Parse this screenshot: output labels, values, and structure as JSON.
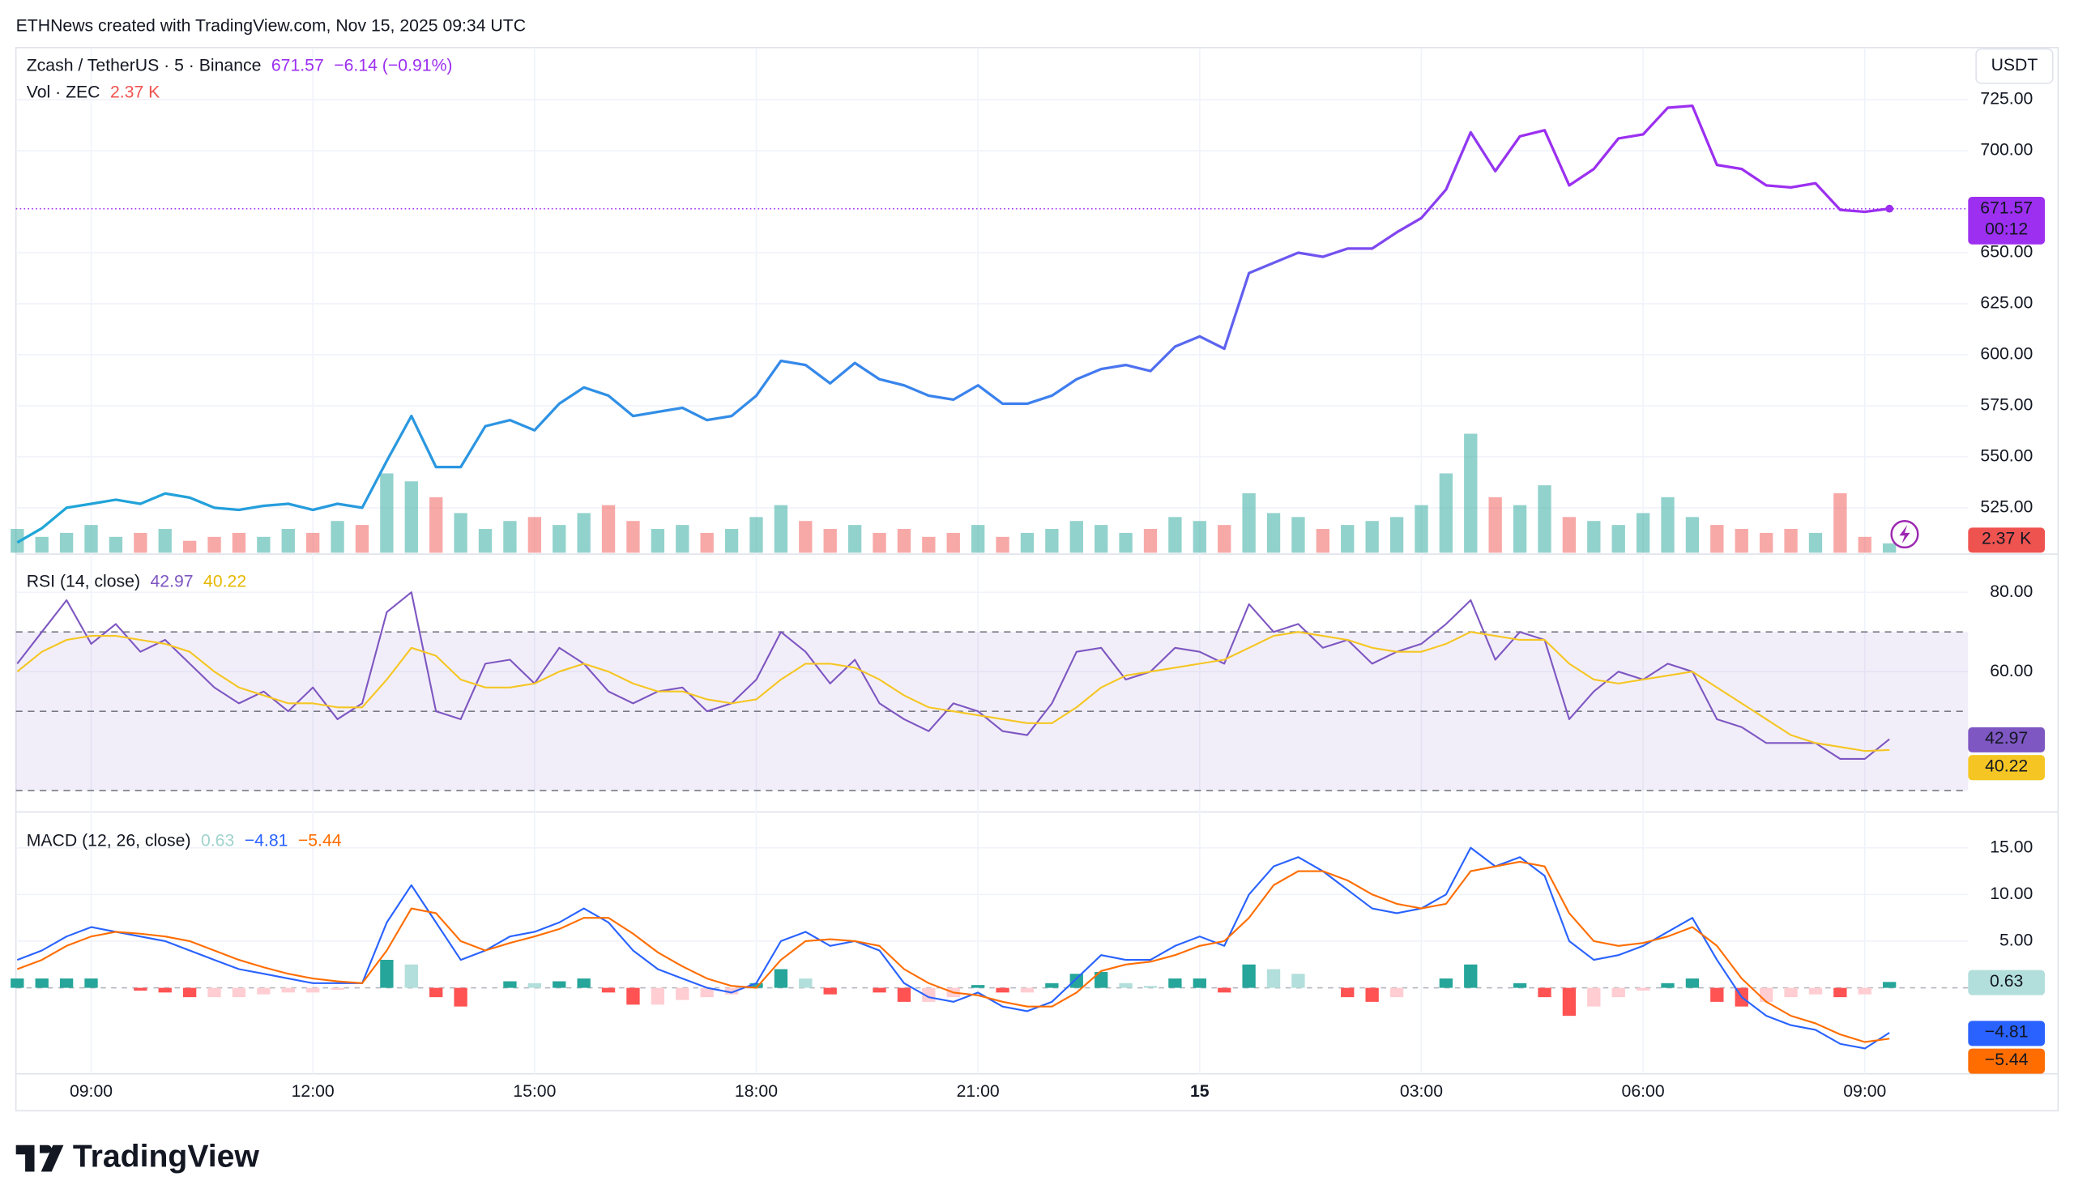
{
  "header": "ETHNews created with TradingView.com, Nov 15, 2025 09:34 UTC",
  "logo": "TradingView",
  "chart_data": [
    {
      "type": "line",
      "title": "Zcash / TetherUS · 5 · Binance",
      "change": "−6.14 (−0.91%)",
      "unit": "USDT",
      "last_time": "00:12",
      "categories": [
        null,
        null,
        null,
        "09:00",
        null,
        null,
        null,
        null,
        null,
        null,
        null,
        null,
        "12:00",
        null,
        null,
        null,
        null,
        null,
        null,
        null,
        null,
        "15:00",
        null,
        null,
        null,
        null,
        null,
        null,
        null,
        null,
        "18:00",
        null,
        null,
        null,
        null,
        null,
        null,
        null,
        null,
        "21:00",
        null,
        null,
        null,
        null,
        null,
        null,
        null,
        null,
        "15",
        null,
        null,
        null,
        null,
        null,
        null,
        null,
        null,
        "03:00",
        null,
        null,
        null,
        null,
        null,
        null,
        null,
        null,
        "06:00",
        null,
        null,
        null,
        null,
        null,
        null,
        null,
        null,
        "09:00",
        null
      ],
      "series": [
        {
          "colors": [
            "#1ea7d6",
            "#3d7ff0",
            "#9c2ff0"
          ],
          "values": [
            508,
            515,
            525,
            527,
            529,
            527,
            532,
            530,
            525,
            524,
            526,
            527,
            524,
            527,
            525,
            548,
            570,
            545,
            545,
            565,
            568,
            563,
            576,
            584,
            580,
            570,
            572,
            574,
            568,
            570,
            580,
            597,
            595,
            586,
            596,
            588,
            585,
            580,
            578,
            585,
            576,
            576,
            580,
            588,
            593,
            595,
            592,
            604,
            609,
            603,
            640,
            645,
            650,
            648,
            652,
            652,
            660,
            667,
            681,
            709,
            690,
            707,
            710,
            683,
            691,
            706,
            708,
            721,
            722,
            693,
            691,
            683,
            682,
            684,
            671,
            670,
            671.57
          ]
        }
      ],
      "volume": {
        "label": "Vol · ZEC",
        "last_label": "2.37 K",
        "up_color": "#26a69a",
        "down_color": "#ef5350",
        "values": [
          6,
          4,
          5,
          7,
          4,
          5,
          6,
          3,
          4,
          5,
          4,
          6,
          5,
          8,
          7,
          20,
          18,
          14,
          10,
          6,
          8,
          9,
          7,
          10,
          12,
          8,
          6,
          7,
          5,
          6,
          9,
          12,
          8,
          6,
          7,
          5,
          6,
          4,
          5,
          7,
          4,
          5,
          6,
          8,
          7,
          5,
          6,
          9,
          8,
          7,
          15,
          10,
          9,
          6,
          7,
          8,
          9,
          12,
          20,
          30,
          14,
          12,
          17,
          9,
          8,
          7,
          10,
          14,
          9,
          7,
          6,
          5,
          6,
          5,
          15,
          4,
          2.37
        ]
      },
      "ylim": [
        503,
        750.5
      ],
      "yticks": [
        {
          "value": 525,
          "label": "525.00"
        },
        {
          "value": 550,
          "label": "550.00"
        },
        {
          "value": 575,
          "label": "575.00"
        },
        {
          "value": 600,
          "label": "600.00"
        },
        {
          "value": 625,
          "label": "625.00"
        },
        {
          "value": 650,
          "label": "650.00"
        },
        {
          "value": 700,
          "label": "700.00"
        },
        {
          "value": 725,
          "label": "725.00"
        }
      ],
      "grid": true
    },
    {
      "type": "line",
      "title": "RSI (14, close)",
      "series": [
        {
          "color": "#7e57c2",
          "values": [
            62,
            70,
            78,
            67,
            72,
            65,
            68,
            62,
            56,
            52,
            55,
            50,
            56,
            48,
            52,
            75,
            80,
            50,
            48,
            62,
            63,
            57,
            66,
            62,
            55,
            52,
            55,
            56,
            50,
            52,
            58,
            70,
            65,
            57,
            63,
            52,
            48,
            45,
            52,
            50,
            45,
            44,
            52,
            65,
            66,
            58,
            60,
            66,
            65,
            62,
            77,
            70,
            72,
            66,
            68,
            62,
            65,
            67,
            72,
            78,
            63,
            70,
            68,
            48,
            55,
            60,
            58,
            62,
            60,
            48,
            46,
            42,
            42,
            42,
            38,
            38,
            42.97
          ]
        },
        {
          "color": "#f5c623",
          "values": [
            60,
            65,
            68,
            69,
            69,
            68,
            67,
            65,
            60,
            56,
            54,
            52,
            52,
            51,
            51,
            58,
            66,
            64,
            58,
            56,
            56,
            57,
            60,
            62,
            60,
            57,
            55,
            55,
            53,
            52,
            53,
            58,
            62,
            62,
            61,
            58,
            54,
            51,
            50,
            49,
            48,
            47,
            47,
            51,
            56,
            59,
            60,
            61,
            62,
            63,
            66,
            69,
            70,
            69,
            68,
            66,
            65,
            65,
            67,
            70,
            69,
            68,
            68,
            62,
            58,
            57,
            58,
            59,
            60,
            56,
            52,
            48,
            44,
            42,
            41,
            40,
            40.22
          ]
        }
      ],
      "levels": [
        70,
        50,
        30
      ],
      "ylim": [
        25.3,
        89.3
      ],
      "yticks": [
        {
          "value": 60,
          "label": "60.00"
        },
        {
          "value": 80,
          "label": "80.00"
        }
      ],
      "grid": true
    },
    {
      "type": "macd",
      "title": "MACD (12, 26, close)",
      "histogram": {
        "colors": [
          "#26a69a",
          "#b2dfdb",
          "#ff5252",
          "#ffcdd2"
        ],
        "values": [
          1,
          1,
          1,
          1,
          0,
          -0.3,
          -0.5,
          -1,
          -1,
          -1,
          -0.7,
          -0.5,
          -0.5,
          -0.2,
          0,
          3,
          2.5,
          -1,
          -2,
          0,
          0.7,
          0.5,
          0.7,
          1,
          -0.5,
          -1.8,
          -1.8,
          -1.3,
          -1,
          -0.7,
          0.5,
          2,
          1,
          -0.7,
          0,
          -0.5,
          -1.5,
          -1.5,
          -1,
          0.3,
          -0.5,
          -0.5,
          0.5,
          1.5,
          1.7,
          0.5,
          0.2,
          1,
          1,
          -0.5,
          2.5,
          2,
          1.5,
          0,
          -1,
          -1.5,
          -1,
          0,
          1,
          2.5,
          0,
          0.5,
          -1,
          -3,
          -2,
          -1,
          -0.3,
          0.5,
          1,
          -1.5,
          -2,
          -1.5,
          -1,
          -0.7,
          -1,
          -0.7,
          0.63
        ]
      },
      "series": [
        {
          "color": "#2962ff",
          "last_label": "−4.81",
          "values": [
            3,
            4,
            5.5,
            6.5,
            6,
            5.5,
            5,
            4,
            3,
            2,
            1.5,
            1,
            0.5,
            0.5,
            0.5,
            7,
            11,
            7,
            3,
            4,
            5.5,
            6,
            7,
            8.5,
            7,
            4,
            2,
            1,
            0,
            -0.5,
            0.5,
            5,
            6,
            4.5,
            5,
            4,
            0.5,
            -1,
            -1.5,
            -0.5,
            -2,
            -2.5,
            -1.5,
            1,
            3.5,
            3,
            3,
            4.5,
            5.5,
            4.5,
            10,
            13,
            14,
            12.5,
            10.5,
            8.5,
            8,
            8.5,
            10,
            15,
            13,
            14,
            12,
            5,
            3,
            3.5,
            4.5,
            6,
            7.5,
            3,
            -1,
            -3,
            -4,
            -4.5,
            -6,
            -6.5,
            -4.81
          ]
        },
        {
          "color": "#ff6d00",
          "last_label": "−5.44",
          "values": [
            2,
            3,
            4.5,
            5.5,
            6,
            5.8,
            5.5,
            5,
            4,
            3,
            2.2,
            1.5,
            1,
            0.7,
            0.5,
            4,
            8.5,
            8,
            5,
            4,
            4.8,
            5.5,
            6.3,
            7.5,
            7.5,
            5.8,
            3.8,
            2.3,
            1,
            0.2,
            0,
            3,
            5,
            5.2,
            5,
            4.5,
            2,
            0.5,
            -0.5,
            -0.8,
            -1.5,
            -2,
            -2,
            -0.5,
            1.8,
            2.5,
            2.8,
            3.5,
            4.5,
            5,
            7.5,
            11,
            12.5,
            12.5,
            11.5,
            10,
            9,
            8.5,
            9,
            12.5,
            13,
            13.5,
            13,
            8,
            5,
            4.5,
            4.8,
            5.5,
            6.5,
            4.5,
            1,
            -1.5,
            -3,
            -3.8,
            -5,
            -5.8,
            -5.44
          ]
        }
      ],
      "ylim": [
        -9.2,
        18.7
      ],
      "yticks": [
        {
          "value": 5,
          "label": "5.00"
        },
        {
          "value": 10,
          "label": "10.00"
        },
        {
          "value": 15,
          "label": "15.00"
        }
      ],
      "grid": true
    }
  ]
}
